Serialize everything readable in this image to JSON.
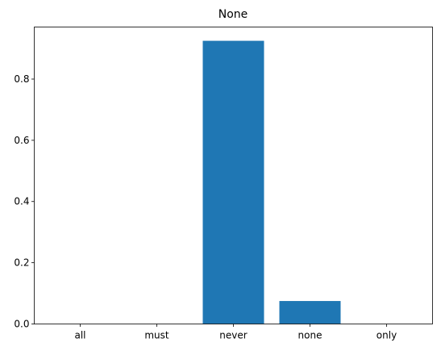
{
  "chart_data": {
    "type": "bar",
    "title": "None",
    "xlabel": "",
    "ylabel": "",
    "categories": [
      "all",
      "must",
      "never",
      "none",
      "only"
    ],
    "values": [
      0,
      0,
      0.925,
      0.075,
      0
    ],
    "ylim": [
      0,
      0.97
    ],
    "yticks": [
      0.0,
      0.2,
      0.4,
      0.6,
      0.8
    ],
    "ytick_labels": [
      "0.0",
      "0.2",
      "0.4",
      "0.6",
      "0.8"
    ],
    "bar_color": "#1f77b4",
    "grid": false,
    "legend": "none"
  }
}
